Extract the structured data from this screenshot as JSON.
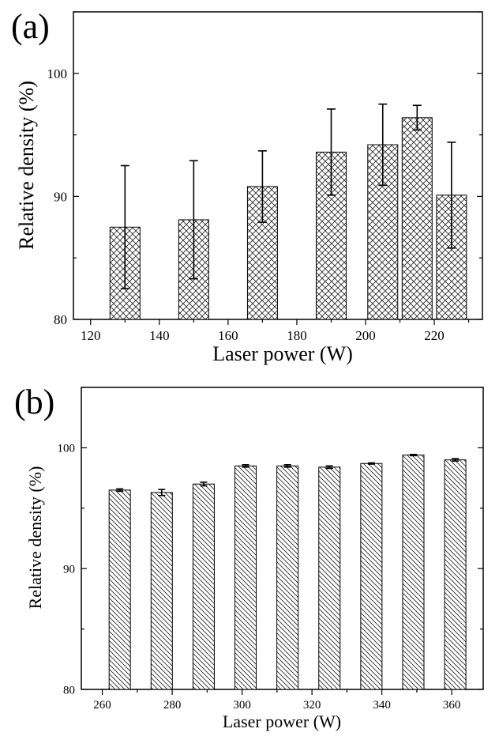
{
  "chart_data": [
    {
      "type": "bar",
      "panel_label": "(a)",
      "x": [
        130,
        150,
        170,
        190,
        205,
        215,
        225
      ],
      "values": [
        87.5,
        88.1,
        90.8,
        93.6,
        94.2,
        96.4,
        90.1
      ],
      "errors": [
        5.0,
        4.8,
        2.9,
        3.5,
        3.3,
        1.0,
        4.3
      ],
      "xlabel": "Laser power (W)",
      "ylabel": "Relative density (%)",
      "xlim": [
        115,
        234
      ],
      "ylim": [
        80,
        105
      ],
      "xticks": [
        120,
        140,
        160,
        180,
        200,
        220
      ],
      "yticks": [
        80,
        90,
        100
      ],
      "hatch": "crosshatch",
      "grid": false
    },
    {
      "type": "bar",
      "panel_label": "(b)",
      "x": [
        265,
        277,
        289,
        301,
        313,
        325,
        337,
        349,
        361
      ],
      "values": [
        96.5,
        96.3,
        97.0,
        98.5,
        98.5,
        98.4,
        98.7,
        99.4,
        99.0
      ],
      "errors": [
        0.1,
        0.25,
        0.15,
        0.1,
        0.1,
        0.1,
        0.05,
        0.05,
        0.1
      ],
      "xlabel": "Laser power (W)",
      "ylabel": "Relative density (%)",
      "xlim": [
        254,
        369
      ],
      "ylim": [
        80,
        105
      ],
      "xticks": [
        260,
        280,
        300,
        320,
        340,
        360
      ],
      "yticks": [
        80,
        90,
        100
      ],
      "hatch": "diagonal",
      "grid": false
    }
  ]
}
